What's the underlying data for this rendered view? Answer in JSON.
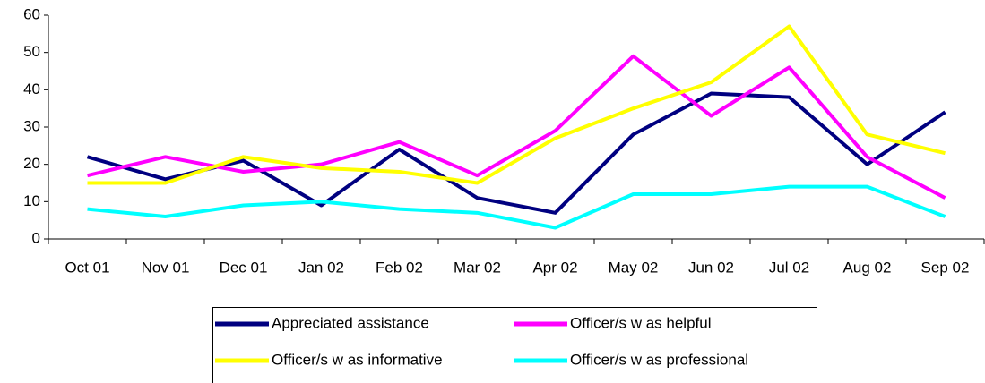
{
  "chart_data": {
    "type": "line",
    "categories": [
      "Oct 01",
      "Nov 01",
      "Dec 01",
      "Jan 02",
      "Feb 02",
      "Mar 02",
      "Apr 02",
      "May 02",
      "Jun 02",
      "Jul 02",
      "Aug 02",
      "Sep 02"
    ],
    "series": [
      {
        "name": "Appreciated assistance",
        "color": "#000080",
        "values": [
          22,
          16,
          21,
          9,
          24,
          11,
          7,
          28,
          39,
          38,
          20,
          34
        ]
      },
      {
        "name": "Officer/s w as helpful",
        "color": "#ff00ff",
        "values": [
          17,
          22,
          18,
          20,
          26,
          17,
          29,
          49,
          33,
          46,
          22,
          11
        ]
      },
      {
        "name": "Officer/s w as informative",
        "color": "#ffff00",
        "values": [
          15,
          15,
          22,
          19,
          18,
          15,
          27,
          35,
          42,
          57,
          28,
          23
        ]
      },
      {
        "name": "Officer/s w as professional",
        "color": "#00ffff",
        "values": [
          8,
          6,
          9,
          10,
          8,
          7,
          3,
          12,
          12,
          14,
          14,
          6
        ]
      }
    ],
    "ylim": [
      0,
      60
    ],
    "yticks": [
      0,
      10,
      20,
      30,
      40,
      50,
      60
    ],
    "grid": false,
    "legend": "bottom"
  }
}
